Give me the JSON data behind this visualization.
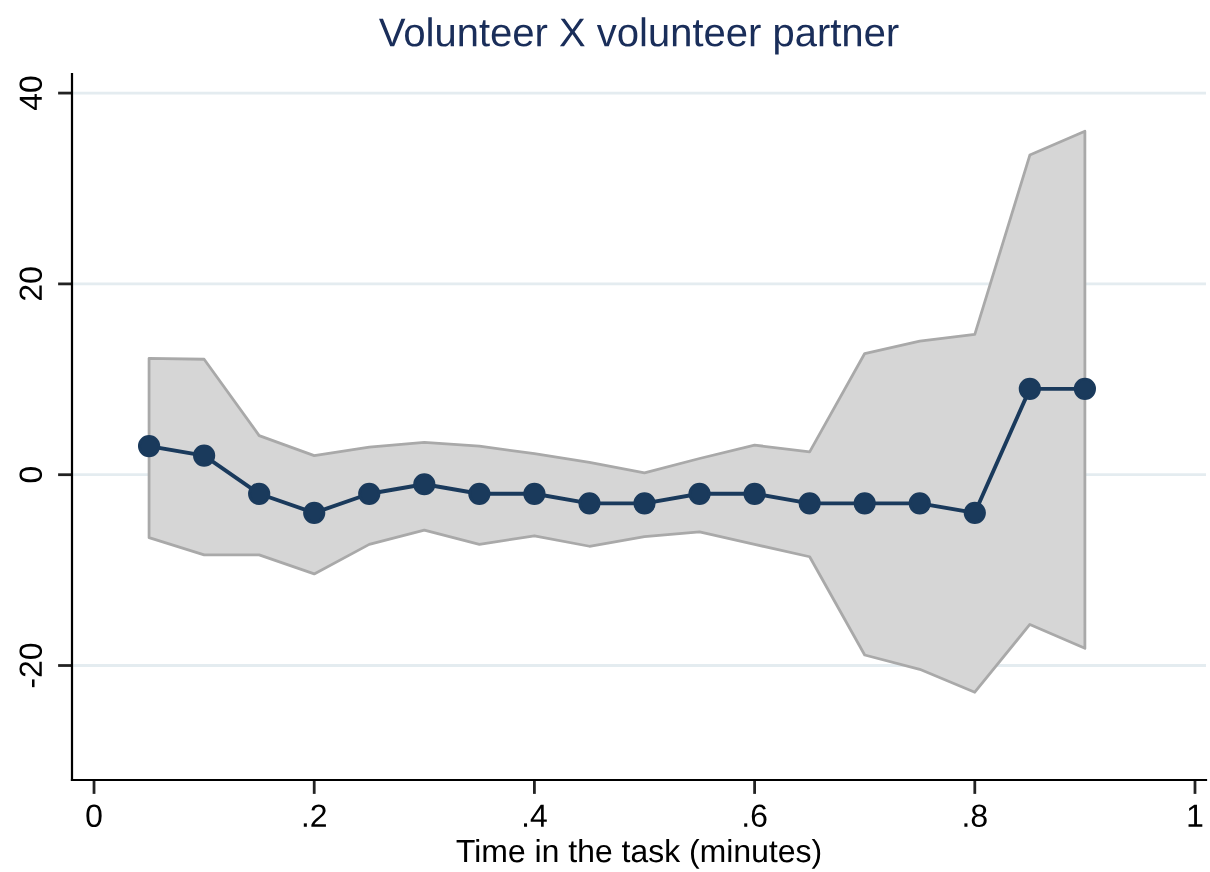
{
  "chart_data": {
    "type": "line",
    "title": "Volunteer X volunteer partner",
    "xlabel": "Time in the task (minutes)",
    "x": [
      0.05,
      0.1,
      0.15,
      0.2,
      0.25,
      0.3,
      0.35,
      0.4,
      0.45,
      0.5,
      0.55,
      0.6,
      0.65,
      0.7,
      0.75,
      0.8,
      0.85,
      0.9
    ],
    "series": [
      {
        "color": "#1a3a5c",
        "values": [
          3,
          2,
          -2,
          -4,
          -2,
          -1,
          -2,
          -2,
          -3,
          -3,
          -2,
          -2,
          -3,
          -3,
          -3,
          -4,
          9,
          9
        ],
        "lower": [
          -6.6,
          -8.4,
          -8.4,
          -10.4,
          -7.3,
          -5.8,
          -7.3,
          -6.4,
          -7.5,
          -6.5,
          -6.0,
          -7.3,
          -8.6,
          -18.9,
          -20.4,
          -22.8,
          -15.7,
          -18.2
        ],
        "upper": [
          12.2,
          12.1,
          4.1,
          2.0,
          2.9,
          3.4,
          3.0,
          2.2,
          1.3,
          0.2,
          1.7,
          3.1,
          2.4,
          12.7,
          14.0,
          14.7,
          33.5,
          36.0
        ]
      }
    ],
    "xlim": [
      -0.02,
      1.01
    ],
    "ylim": [
      -32,
      42
    ],
    "xticks": [
      0,
      {
        "value": 0.2,
        "label": ".2"
      },
      {
        "value": 0.4,
        "label": ".4"
      },
      {
        "value": 0.6,
        "label": ".6"
      },
      {
        "value": 0.8,
        "label": ".8"
      },
      1
    ],
    "yticks": [
      -20,
      0,
      20,
      40
    ],
    "grid": "y",
    "marker": "circle",
    "line_style": "solid"
  }
}
